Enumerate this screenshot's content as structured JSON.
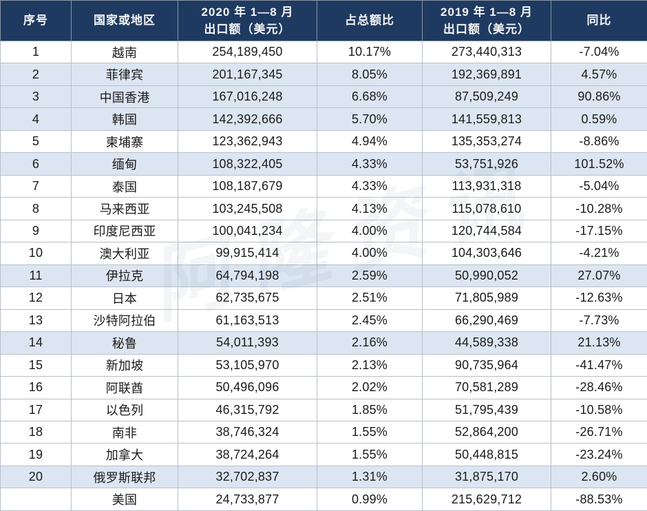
{
  "table": {
    "column_keys": [
      "rank",
      "country",
      "export2020",
      "share",
      "export2019",
      "yoy"
    ],
    "columns": [
      {
        "key": "rank",
        "label": "序号"
      },
      {
        "key": "country",
        "label": "国家或地区"
      },
      {
        "key": "export2020",
        "label": "2020 年 1—8 月\n出口额（美元）"
      },
      {
        "key": "share",
        "label": "占总额比"
      },
      {
        "key": "export2019",
        "label": "2019 年 1—8 月\n出口额（美元）"
      },
      {
        "key": "yoy",
        "label": "同比"
      }
    ],
    "rows": [
      {
        "rank": "1",
        "country": "越南",
        "export2020": "254,189,450",
        "share": "10.17%",
        "export2019": "273,440,313",
        "yoy": "-7.04%",
        "shaded": false
      },
      {
        "rank": "2",
        "country": "菲律宾",
        "export2020": "201,167,345",
        "share": "8.05%",
        "export2019": "192,369,891",
        "yoy": "4.57%",
        "shaded": true
      },
      {
        "rank": "3",
        "country": "中国香港",
        "export2020": "167,016,248",
        "share": "6.68%",
        "export2019": "87,509,249",
        "yoy": "90.86%",
        "shaded": true
      },
      {
        "rank": "4",
        "country": "韩国",
        "export2020": "142,392,666",
        "share": "5.70%",
        "export2019": "141,559,813",
        "yoy": "0.59%",
        "shaded": true
      },
      {
        "rank": "5",
        "country": "柬埔寨",
        "export2020": "123,362,943",
        "share": "4.94%",
        "export2019": "135,353,274",
        "yoy": "-8.86%",
        "shaded": false
      },
      {
        "rank": "6",
        "country": "缅甸",
        "export2020": "108,322,405",
        "share": "4.33%",
        "export2019": "53,751,926",
        "yoy": "101.52%",
        "shaded": true
      },
      {
        "rank": "7",
        "country": "泰国",
        "export2020": "108,187,679",
        "share": "4.33%",
        "export2019": "113,931,318",
        "yoy": "-5.04%",
        "shaded": false
      },
      {
        "rank": "8",
        "country": "马来西亚",
        "export2020": "103,245,508",
        "share": "4.13%",
        "export2019": "115,078,610",
        "yoy": "-10.28%",
        "shaded": false
      },
      {
        "rank": "9",
        "country": "印度尼西亚",
        "export2020": "100,041,234",
        "share": "4.00%",
        "export2019": "120,744,584",
        "yoy": "-17.15%",
        "shaded": false
      },
      {
        "rank": "10",
        "country": "澳大利亚",
        "export2020": "99,915,414",
        "share": "4.00%",
        "export2019": "104,303,646",
        "yoy": "-4.21%",
        "shaded": false
      },
      {
        "rank": "11",
        "country": "伊拉克",
        "export2020": "64,794,198",
        "share": "2.59%",
        "export2019": "50,990,052",
        "yoy": "27.07%",
        "shaded": true
      },
      {
        "rank": "12",
        "country": "日本",
        "export2020": "62,735,675",
        "share": "2.51%",
        "export2019": "71,805,989",
        "yoy": "-12.63%",
        "shaded": false
      },
      {
        "rank": "13",
        "country": "沙特阿拉伯",
        "export2020": "61,163,513",
        "share": "2.45%",
        "export2019": "66,290,469",
        "yoy": "-7.73%",
        "shaded": false
      },
      {
        "rank": "14",
        "country": "秘鲁",
        "export2020": "54,011,393",
        "share": "2.16%",
        "export2019": "44,589,338",
        "yoy": "21.13%",
        "shaded": true
      },
      {
        "rank": "15",
        "country": "新加坡",
        "export2020": "53,105,970",
        "share": "2.13%",
        "export2019": "90,735,964",
        "yoy": "-41.47%",
        "shaded": false
      },
      {
        "rank": "16",
        "country": "阿联酋",
        "export2020": "50,496,096",
        "share": "2.02%",
        "export2019": "70,581,289",
        "yoy": "-28.46%",
        "shaded": false
      },
      {
        "rank": "17",
        "country": "以色列",
        "export2020": "46,315,792",
        "share": "1.85%",
        "export2019": "51,795,439",
        "yoy": "-10.58%",
        "shaded": false
      },
      {
        "rank": "18",
        "country": "南非",
        "export2020": "38,746,324",
        "share": "1.55%",
        "export2019": "52,864,200",
        "yoy": "-26.71%",
        "shaded": false
      },
      {
        "rank": "19",
        "country": "加拿大",
        "export2020": "38,724,264",
        "share": "1.55%",
        "export2019": "50,448,815",
        "yoy": "-23.24%",
        "shaded": false
      },
      {
        "rank": "20",
        "country": "俄罗斯联邦",
        "export2020": "32,702,837",
        "share": "1.31%",
        "export2019": "31,875,170",
        "yoy": "2.60%",
        "shaded": true
      },
      {
        "rank": "",
        "country": "美国",
        "export2020": "24,733,877",
        "share": "0.99%",
        "export2019": "215,629,712",
        "yoy": "-88.53%",
        "shaded": false
      }
    ]
  },
  "watermark": {
    "text": "阿隆资讯"
  },
  "colors": {
    "header_bg": "#1f3a60",
    "header_text": "#f5f6f8",
    "stripe_bg": "#dce6f2",
    "grid_border": "#b7bfc9",
    "body_text": "#1a1a1a"
  }
}
